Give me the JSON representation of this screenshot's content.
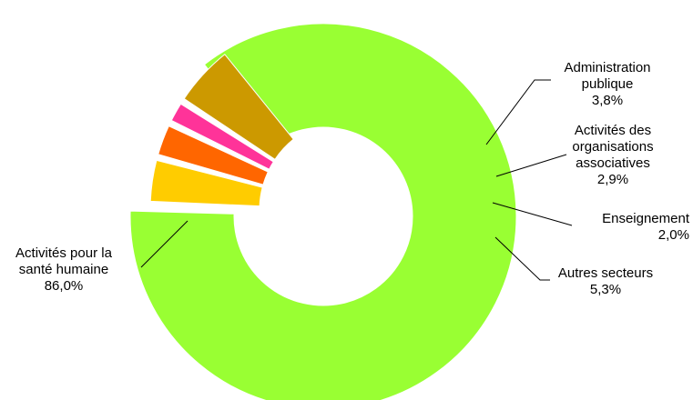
{
  "chart_data": {
    "type": "pie",
    "variant": "donut",
    "legend": "none",
    "slices": [
      {
        "label_lines": [
          "Activités pour la",
          "santé humaine"
        ],
        "value_label": "86,0%",
        "value": 86.0,
        "color": "#99ff33"
      },
      {
        "label_lines": [
          "Administration",
          "publique"
        ],
        "value_label": "3,8%",
        "value": 3.8,
        "color": "#ffcc00"
      },
      {
        "label_lines": [
          "Activités des",
          "organisations",
          "associatives"
        ],
        "value_label": "2,9%",
        "value": 2.9,
        "color": "#ff6600"
      },
      {
        "label_lines": [
          "Enseignement"
        ],
        "value_label": "2,0%",
        "value": 2.0,
        "color": "#ff3399"
      },
      {
        "label_lines": [
          "Autres secteurs"
        ],
        "value_label": "5,3%",
        "value": 5.3,
        "color": "#cc9900"
      }
    ]
  }
}
